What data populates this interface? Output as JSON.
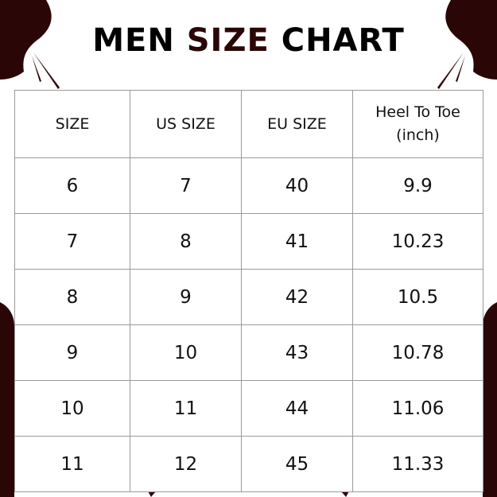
{
  "title": {
    "part1": "MEN",
    "part2": "SIZE",
    "part3": "CHART"
  },
  "colors": {
    "accent": "#2b0606",
    "border": "#9a9a9a"
  },
  "table": {
    "headers": [
      "SIZE",
      "US SIZE",
      "EU SIZE",
      "Heel To Toe (inch)"
    ],
    "rows": [
      [
        "6",
        "7",
        "40",
        "9.9"
      ],
      [
        "7",
        "8",
        "41",
        "10.23"
      ],
      [
        "8",
        "9",
        "42",
        "10.5"
      ],
      [
        "9",
        "10",
        "43",
        "10.78"
      ],
      [
        "10",
        "11",
        "44",
        "11.06"
      ],
      [
        "11",
        "12",
        "45",
        "11.33"
      ]
    ]
  }
}
